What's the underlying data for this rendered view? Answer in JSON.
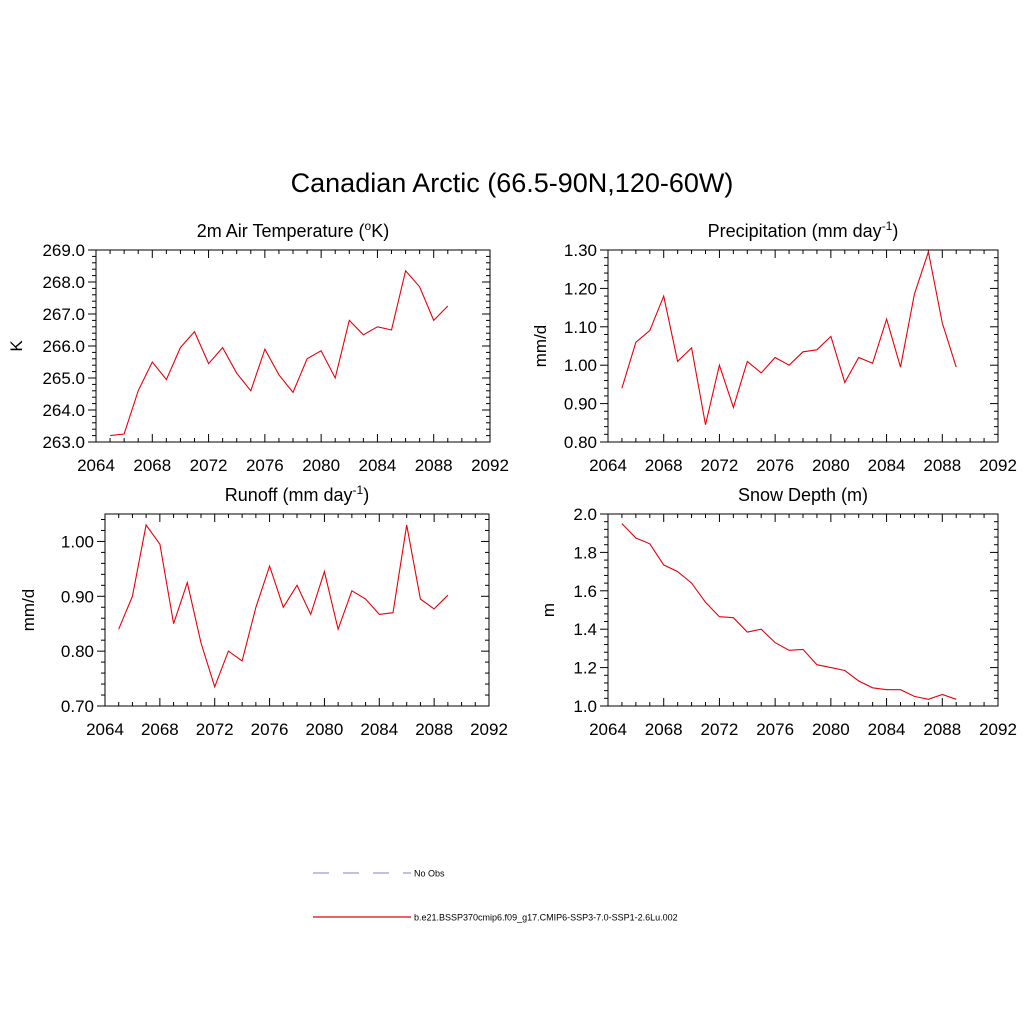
{
  "title": "Canadian Arctic (66.5-90N,120-60W)",
  "colors": {
    "series": "#e8000b",
    "no_obs": "#9999dd"
  },
  "legend": {
    "entries": [
      {
        "label": "No Obs",
        "style": "dashed",
        "color": "#9999dd"
      },
      {
        "label": "b.e21.BSSP370cmip6.f09_g17.CMIP6-SSP3-7.0-SSP1-2.6Lu.002",
        "style": "solid",
        "color": "#e8000b"
      }
    ]
  },
  "chart_data": [
    {
      "type": "line",
      "title_main": "2m Air Temperature (",
      "title_sup": "o",
      "title_tail": "K)",
      "ylabel": "K",
      "xlim": [
        2064,
        2092
      ],
      "ylim": [
        263.0,
        269.0
      ],
      "xticks": [
        "2064",
        "2068",
        "2072",
        "2076",
        "2080",
        "2084",
        "2088",
        "2092"
      ],
      "yticks": [
        "263.0",
        "264.0",
        "265.0",
        "266.0",
        "267.0",
        "268.0",
        "269.0"
      ],
      "x": [
        2065,
        2066,
        2067,
        2068,
        2069,
        2070,
        2071,
        2072,
        2073,
        2074,
        2075,
        2076,
        2077,
        2078,
        2079,
        2080,
        2081,
        2082,
        2083,
        2084,
        2085,
        2086,
        2087,
        2088,
        2089
      ],
      "y": [
        263.2,
        263.25,
        264.6,
        265.5,
        264.95,
        265.95,
        266.45,
        265.45,
        265.95,
        265.15,
        264.6,
        265.9,
        265.1,
        264.55,
        265.6,
        265.85,
        265.0,
        266.8,
        266.35,
        266.6,
        266.5,
        268.35,
        267.85,
        266.8,
        267.25
      ]
    },
    {
      "type": "line",
      "title_main": "Precipitation (mm day",
      "title_sup": "-1",
      "title_tail": ")",
      "ylabel": "mm/d",
      "xlim": [
        2064,
        2092
      ],
      "ylim": [
        0.8,
        1.3
      ],
      "xticks": [
        "2064",
        "2068",
        "2072",
        "2076",
        "2080",
        "2084",
        "2088",
        "2092"
      ],
      "yticks": [
        "0.80",
        "0.90",
        "1.00",
        "1.10",
        "1.20",
        "1.30"
      ],
      "x": [
        2065,
        2066,
        2067,
        2068,
        2069,
        2070,
        2071,
        2072,
        2073,
        2074,
        2075,
        2076,
        2077,
        2078,
        2079,
        2080,
        2081,
        2082,
        2083,
        2084,
        2085,
        2086,
        2087,
        2088,
        2089
      ],
      "y": [
        0.94,
        1.06,
        1.09,
        1.18,
        1.01,
        1.045,
        0.845,
        1.0,
        0.89,
        1.01,
        0.98,
        1.02,
        1.0,
        1.035,
        1.04,
        1.075,
        0.955,
        1.02,
        1.005,
        1.12,
        0.995,
        1.185,
        1.295,
        1.11,
        0.995
      ]
    },
    {
      "type": "line",
      "title_main": "Runoff (mm day",
      "title_sup": "-1",
      "title_tail": ")",
      "ylabel": "mm/d",
      "xlim": [
        2064,
        2092
      ],
      "ylim": [
        0.7,
        1.05
      ],
      "xticks": [
        "2064",
        "2068",
        "2072",
        "2076",
        "2080",
        "2084",
        "2088",
        "2092"
      ],
      "yticks": [
        "0.70",
        "0.80",
        "0.90",
        "1.00"
      ],
      "x": [
        2065,
        2066,
        2067,
        2068,
        2069,
        2070,
        2071,
        2072,
        2073,
        2074,
        2075,
        2076,
        2077,
        2078,
        2079,
        2080,
        2081,
        2082,
        2083,
        2084,
        2085,
        2086,
        2087,
        2088,
        2089
      ],
      "y": [
        0.84,
        0.9,
        1.03,
        0.995,
        0.85,
        0.925,
        0.815,
        0.735,
        0.8,
        0.782,
        0.88,
        0.955,
        0.88,
        0.92,
        0.867,
        0.945,
        0.84,
        0.91,
        0.895,
        0.867,
        0.87,
        1.03,
        0.895,
        0.877,
        0.902
      ]
    },
    {
      "type": "line",
      "title_main": "Snow Depth (m)",
      "title_sup": "",
      "title_tail": "",
      "ylabel": "m",
      "xlim": [
        2064,
        2092
      ],
      "ylim": [
        1.0,
        2.0
      ],
      "xticks": [
        "2064",
        "2068",
        "2072",
        "2076",
        "2080",
        "2084",
        "2088",
        "2092"
      ],
      "yticks": [
        "1.0",
        "1.2",
        "1.4",
        "1.6",
        "1.8",
        "2.0"
      ],
      "x": [
        2065,
        2066,
        2067,
        2068,
        2069,
        2070,
        2071,
        2072,
        2073,
        2074,
        2075,
        2076,
        2077,
        2078,
        2079,
        2080,
        2081,
        2082,
        2083,
        2084,
        2085,
        2086,
        2087,
        2088,
        2089
      ],
      "y": [
        1.95,
        1.875,
        1.845,
        1.735,
        1.7,
        1.64,
        1.54,
        1.465,
        1.46,
        1.385,
        1.4,
        1.33,
        1.29,
        1.295,
        1.215,
        1.2,
        1.185,
        1.13,
        1.095,
        1.085,
        1.085,
        1.05,
        1.035,
        1.06,
        1.035
      ]
    }
  ]
}
